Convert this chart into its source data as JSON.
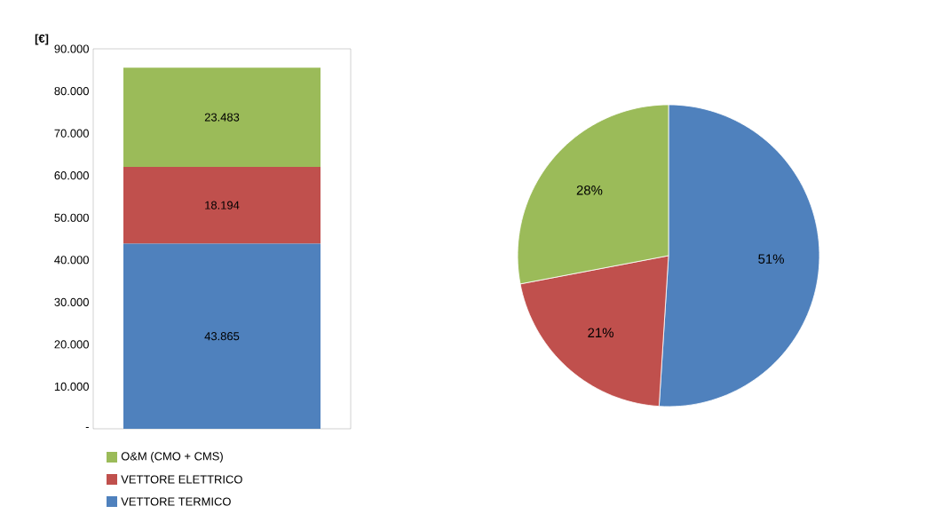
{
  "chart_data": [
    {
      "type": "bar",
      "stacked": true,
      "ylabel": "[€]",
      "categories": [
        null
      ],
      "ylim": [
        0,
        90000
      ],
      "yticks": [
        {
          "value": 0,
          "label": "-"
        },
        {
          "value": 10000,
          "label": "10.000"
        },
        {
          "value": 20000,
          "label": "20.000"
        },
        {
          "value": 30000,
          "label": "30.000"
        },
        {
          "value": 40000,
          "label": "40.000"
        },
        {
          "value": 50000,
          "label": "50.000"
        },
        {
          "value": 60000,
          "label": "60.000"
        },
        {
          "value": 70000,
          "label": "70.000"
        },
        {
          "value": 80000,
          "label": "80.000"
        },
        {
          "value": 90000,
          "label": "90.000"
        }
      ],
      "series": [
        {
          "name": "VETTORE TERMICO",
          "color": "#4f81bd",
          "values": [
            43865
          ],
          "value_labels": [
            "43.865"
          ]
        },
        {
          "name": "VETTORE ELETTRICO",
          "color": "#c0504d",
          "values": [
            18194
          ],
          "value_labels": [
            "18.194"
          ]
        },
        {
          "name": "O&M (CMO + CMS)",
          "color": "#9bbb59",
          "values": [
            23483
          ],
          "value_labels": [
            "23.483"
          ]
        }
      ],
      "legend": "bottom",
      "grid": false
    },
    {
      "type": "pie",
      "categories": [
        null,
        null,
        null
      ],
      "values": [
        51,
        21,
        28
      ],
      "colors": [
        "#4f81bd",
        "#c0504d",
        "#9bbb59"
      ],
      "value_labels": [
        "51%",
        "21%",
        "28%"
      ]
    }
  ]
}
